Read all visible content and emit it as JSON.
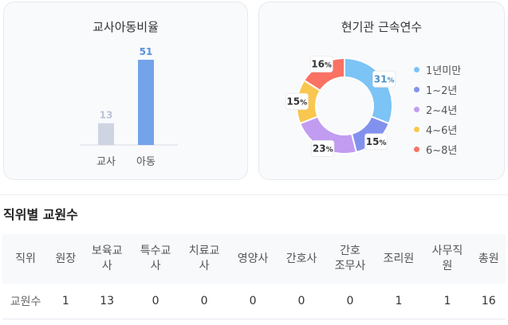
{
  "charts": {
    "ratio": {
      "title": "교사아동비율"
    },
    "tenure": {
      "title": "현기관 근속연수"
    }
  },
  "chart_data": [
    {
      "type": "bar",
      "title": "교사아동비율",
      "categories": [
        "교사",
        "아동"
      ],
      "values": [
        13,
        51
      ],
      "colors": [
        "#cfd4e2",
        "#74a3ea"
      ],
      "label_colors": [
        "#bcc3d6",
        "#5b8fe0"
      ],
      "ylim": [
        0,
        51
      ]
    },
    {
      "type": "pie",
      "title": "현기관 근속연수",
      "categories": [
        "1년미만",
        "1~2년",
        "2~4년",
        "4~6년",
        "6~8년"
      ],
      "values": [
        31,
        15,
        23,
        15,
        16
      ],
      "labels": [
        "31",
        "15",
        "23",
        "15",
        "16"
      ],
      "unit": "%",
      "colors": [
        "#7cc3f6",
        "#8391ee",
        "#c29cf0",
        "#f9c74f",
        "#f97264"
      ],
      "label_colors": [
        "#4a90c8",
        "#333333",
        "#333333",
        "#333333",
        "#333333"
      ]
    }
  ],
  "section": {
    "title": "직위별 교원수"
  },
  "table": {
    "headers": [
      "직위",
      "원장",
      "보육교\n사",
      "특수교\n사",
      "치료교\n사",
      "영양사",
      "간호사",
      "간호\n조무사",
      "조리원",
      "사무직\n원",
      "총원"
    ],
    "row": [
      "교원수",
      "1",
      "13",
      "0",
      "0",
      "0",
      "0",
      "0",
      "1",
      "1",
      "16"
    ]
  }
}
